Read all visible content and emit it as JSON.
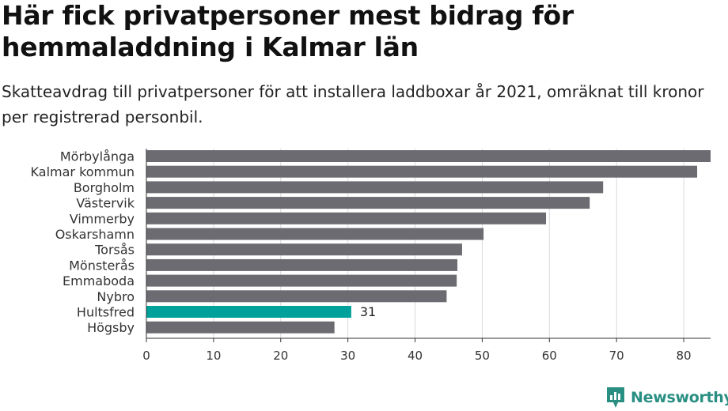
{
  "title": "Här fick privatpersoner mest bidrag för hemmaladdning i Kalmar län",
  "subtitle": "Skatteavdrag till privatpersoner för att installera laddboxar år 2021, omräknat till kronor per registrerad personbil.",
  "brand": {
    "name": "Newsworthy",
    "icon": "newsworthy-logo-icon"
  },
  "colors": {
    "bar": "#6c6b72",
    "highlight": "#00a19a",
    "grid": "#d9d9d9",
    "axis": "#333333",
    "brand": "#2a8f83"
  },
  "chart_data": {
    "type": "bar",
    "orientation": "horizontal",
    "categories": [
      "Mörbylånga",
      "Kalmar kommun",
      "Borgholm",
      "Västervik",
      "Vimmerby",
      "Oskarshamn",
      "Torsås",
      "Mönsterås",
      "Emmaboda",
      "Nybro",
      "Hultsfred",
      "Högsby"
    ],
    "values": [
      84,
      82,
      68,
      66,
      59.5,
      50.2,
      47,
      46.3,
      46.2,
      44.7,
      30.5,
      28
    ],
    "highlight": "Hultsfred",
    "data_labels": [
      {
        "category": "Hultsfred",
        "text": "31"
      }
    ],
    "xticks": [
      0,
      10,
      20,
      30,
      40,
      50,
      60,
      70,
      80
    ],
    "xlim": [
      0,
      84
    ],
    "grid": true
  }
}
